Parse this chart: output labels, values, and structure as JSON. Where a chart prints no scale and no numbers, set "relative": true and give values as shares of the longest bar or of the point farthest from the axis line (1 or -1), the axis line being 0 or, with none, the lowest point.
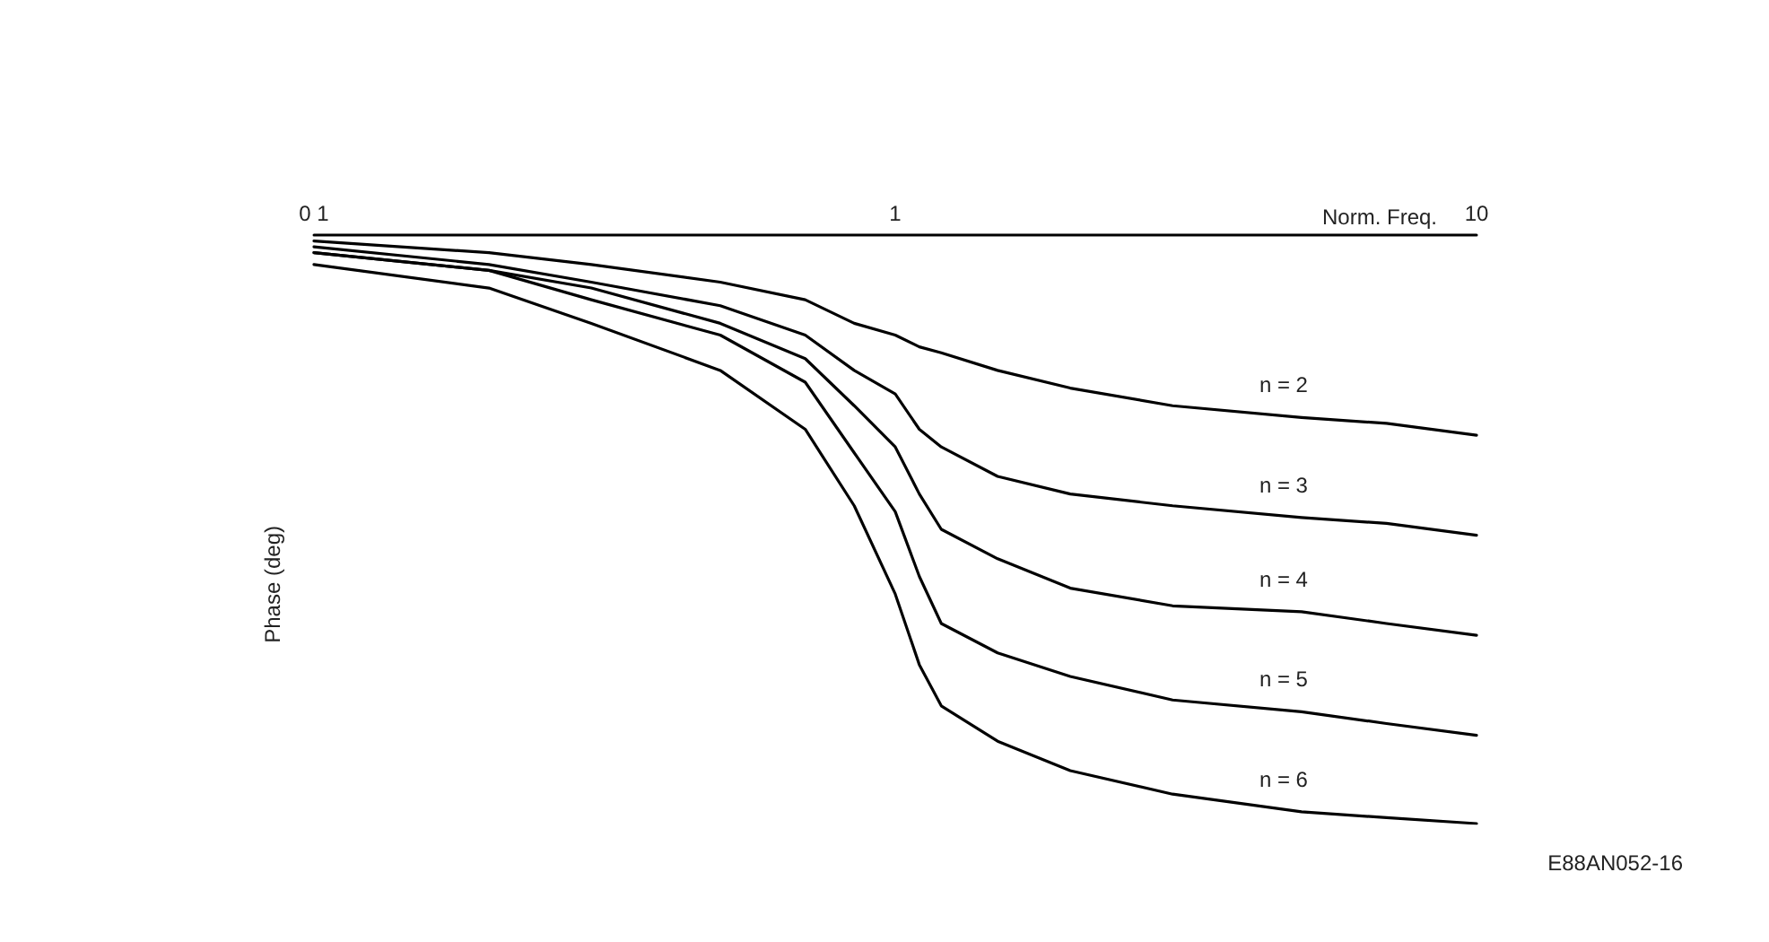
{
  "chart_data": {
    "type": "line",
    "xlabel": "Norm. Freq.",
    "ylabel": "Phase (deg)",
    "relative": true,
    "log": "x",
    "xlim": [
      0.1,
      10
    ],
    "xticks": [
      {
        "value": 0.1,
        "label": "0 1"
      },
      1,
      10
    ],
    "x": [
      0.1,
      0.2,
      0.3,
      0.5,
      0.7,
      0.85,
      1,
      1.1,
      1.2,
      1.5,
      2,
      3,
      5,
      7,
      10
    ],
    "series": [
      {
        "name": "n = 2",
        "color": "#000000",
        "values": [
          -0.01,
          -0.03,
          -0.05,
          -0.08,
          -0.11,
          -0.15,
          -0.17,
          -0.19,
          -0.2,
          -0.23,
          -0.26,
          -0.29,
          -0.31,
          -0.32,
          -0.34
        ]
      },
      {
        "name": "n = 3",
        "color": "#000000",
        "values": [
          -0.02,
          -0.05,
          -0.08,
          -0.12,
          -0.17,
          -0.23,
          -0.27,
          -0.33,
          -0.36,
          -0.41,
          -0.44,
          -0.46,
          -0.48,
          -0.49,
          -0.51
        ]
      },
      {
        "name": "n = 4",
        "color": "#000000",
        "values": [
          -0.03,
          -0.06,
          -0.09,
          -0.15,
          -0.21,
          -0.29,
          -0.36,
          -0.44,
          -0.5,
          -0.55,
          -0.6,
          -0.63,
          -0.64,
          -0.66,
          -0.68
        ]
      },
      {
        "name": "n = 5",
        "color": "#000000",
        "values": [
          -0.03,
          -0.06,
          -0.11,
          -0.17,
          -0.25,
          -0.37,
          -0.47,
          -0.58,
          -0.66,
          -0.71,
          -0.75,
          -0.79,
          -0.81,
          -0.83,
          -0.85
        ]
      },
      {
        "name": "n = 6",
        "color": "#000000",
        "values": [
          -0.05,
          -0.09,
          -0.15,
          -0.23,
          -0.33,
          -0.46,
          -0.61,
          -0.73,
          -0.8,
          -0.86,
          -0.91,
          -0.95,
          -0.98,
          -0.99,
          -1
        ]
      }
    ],
    "annotations": [
      "E88AN052-16"
    ],
    "marker": "none",
    "line_style": "solid",
    "grid": false,
    "legend": false
  }
}
